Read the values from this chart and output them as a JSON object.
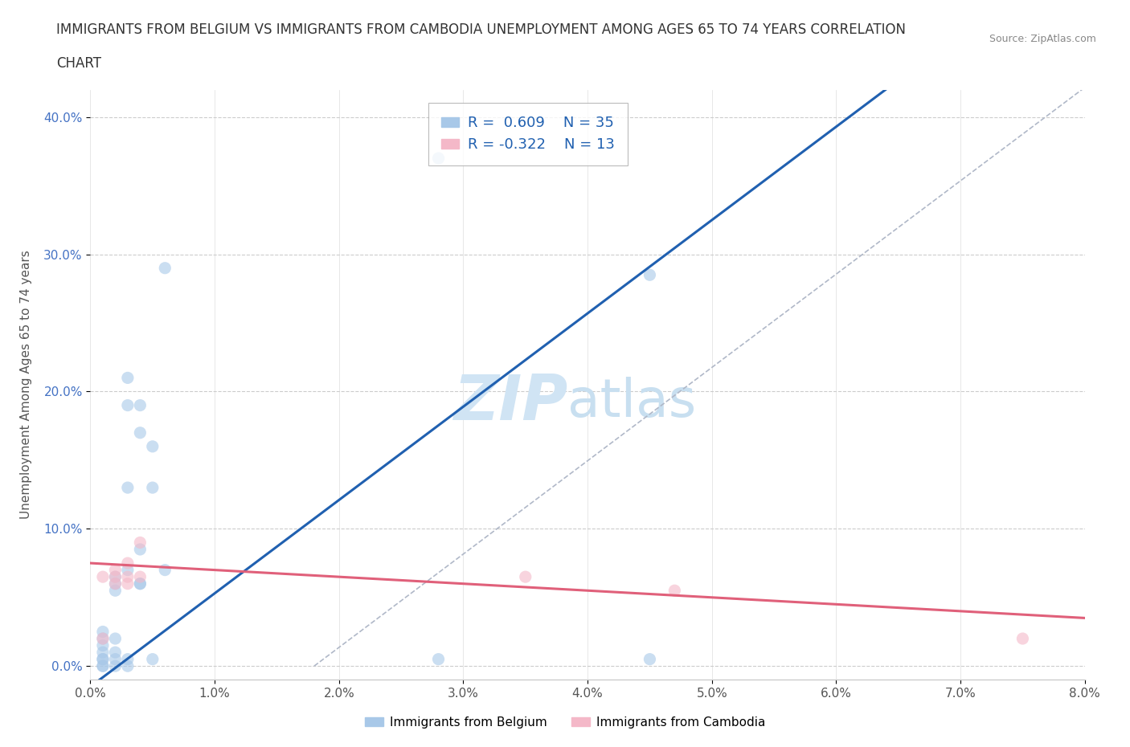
{
  "title_line1": "IMMIGRANTS FROM BELGIUM VS IMMIGRANTS FROM CAMBODIA UNEMPLOYMENT AMONG AGES 65 TO 74 YEARS CORRELATION",
  "title_line2": "CHART",
  "source": "Source: ZipAtlas.com",
  "ylabel": "Unemployment Among Ages 65 to 74 years",
  "xlim": [
    0.0,
    0.08
  ],
  "ylim": [
    -0.01,
    0.42
  ],
  "xticks": [
    0.0,
    0.01,
    0.02,
    0.03,
    0.04,
    0.05,
    0.06,
    0.07,
    0.08
  ],
  "yticks": [
    0.0,
    0.1,
    0.2,
    0.3,
    0.4
  ],
  "xtick_labels": [
    "0.0%",
    "1.0%",
    "2.0%",
    "3.0%",
    "4.0%",
    "5.0%",
    "6.0%",
    "7.0%",
    "8.0%"
  ],
  "ytick_labels": [
    "0.0%",
    "10.0%",
    "20.0%",
    "30.0%",
    "40.0%"
  ],
  "belgium_color": "#a8c8e8",
  "cambodia_color": "#f4b8c8",
  "belgium_label": "Immigrants from Belgium",
  "cambodia_label": "Immigrants from Cambodia",
  "belgium_r": 0.609,
  "belgium_n": 35,
  "cambodia_r": -0.322,
  "cambodia_n": 13,
  "belgium_points": [
    [
      0.001,
      0.025
    ],
    [
      0.001,
      0.02
    ],
    [
      0.001,
      0.015
    ],
    [
      0.001,
      0.01
    ],
    [
      0.001,
      0.005
    ],
    [
      0.001,
      0.005
    ],
    [
      0.001,
      0.0
    ],
    [
      0.001,
      0.0
    ],
    [
      0.002,
      0.065
    ],
    [
      0.002,
      0.06
    ],
    [
      0.002,
      0.055
    ],
    [
      0.002,
      0.02
    ],
    [
      0.002,
      0.01
    ],
    [
      0.002,
      0.005
    ],
    [
      0.002,
      0.0
    ],
    [
      0.003,
      0.21
    ],
    [
      0.003,
      0.19
    ],
    [
      0.003,
      0.13
    ],
    [
      0.003,
      0.07
    ],
    [
      0.003,
      0.005
    ],
    [
      0.003,
      0.0
    ],
    [
      0.004,
      0.19
    ],
    [
      0.004,
      0.17
    ],
    [
      0.004,
      0.085
    ],
    [
      0.004,
      0.06
    ],
    [
      0.004,
      0.06
    ],
    [
      0.005,
      0.16
    ],
    [
      0.005,
      0.13
    ],
    [
      0.005,
      0.005
    ],
    [
      0.006,
      0.29
    ],
    [
      0.006,
      0.07
    ],
    [
      0.028,
      0.37
    ],
    [
      0.028,
      0.005
    ],
    [
      0.045,
      0.285
    ],
    [
      0.045,
      0.005
    ]
  ],
  "cambodia_points": [
    [
      0.001,
      0.065
    ],
    [
      0.001,
      0.02
    ],
    [
      0.002,
      0.07
    ],
    [
      0.002,
      0.065
    ],
    [
      0.002,
      0.06
    ],
    [
      0.003,
      0.075
    ],
    [
      0.003,
      0.065
    ],
    [
      0.003,
      0.06
    ],
    [
      0.004,
      0.09
    ],
    [
      0.004,
      0.065
    ],
    [
      0.035,
      0.065
    ],
    [
      0.047,
      0.055
    ],
    [
      0.075,
      0.02
    ]
  ],
  "belgium_line_color": "#2060b0",
  "cambodia_line_color": "#e0607a",
  "ref_line_color": "#b0b8c8",
  "title_fontsize": 12,
  "axis_label_fontsize": 11,
  "tick_fontsize": 11,
  "legend_fontsize": 13,
  "watermark_zip_color": "#d0e4f4",
  "watermark_atlas_color": "#c8dff0",
  "watermark_fontsize": 56,
  "dot_size": 120,
  "dot_alpha": 0.6
}
